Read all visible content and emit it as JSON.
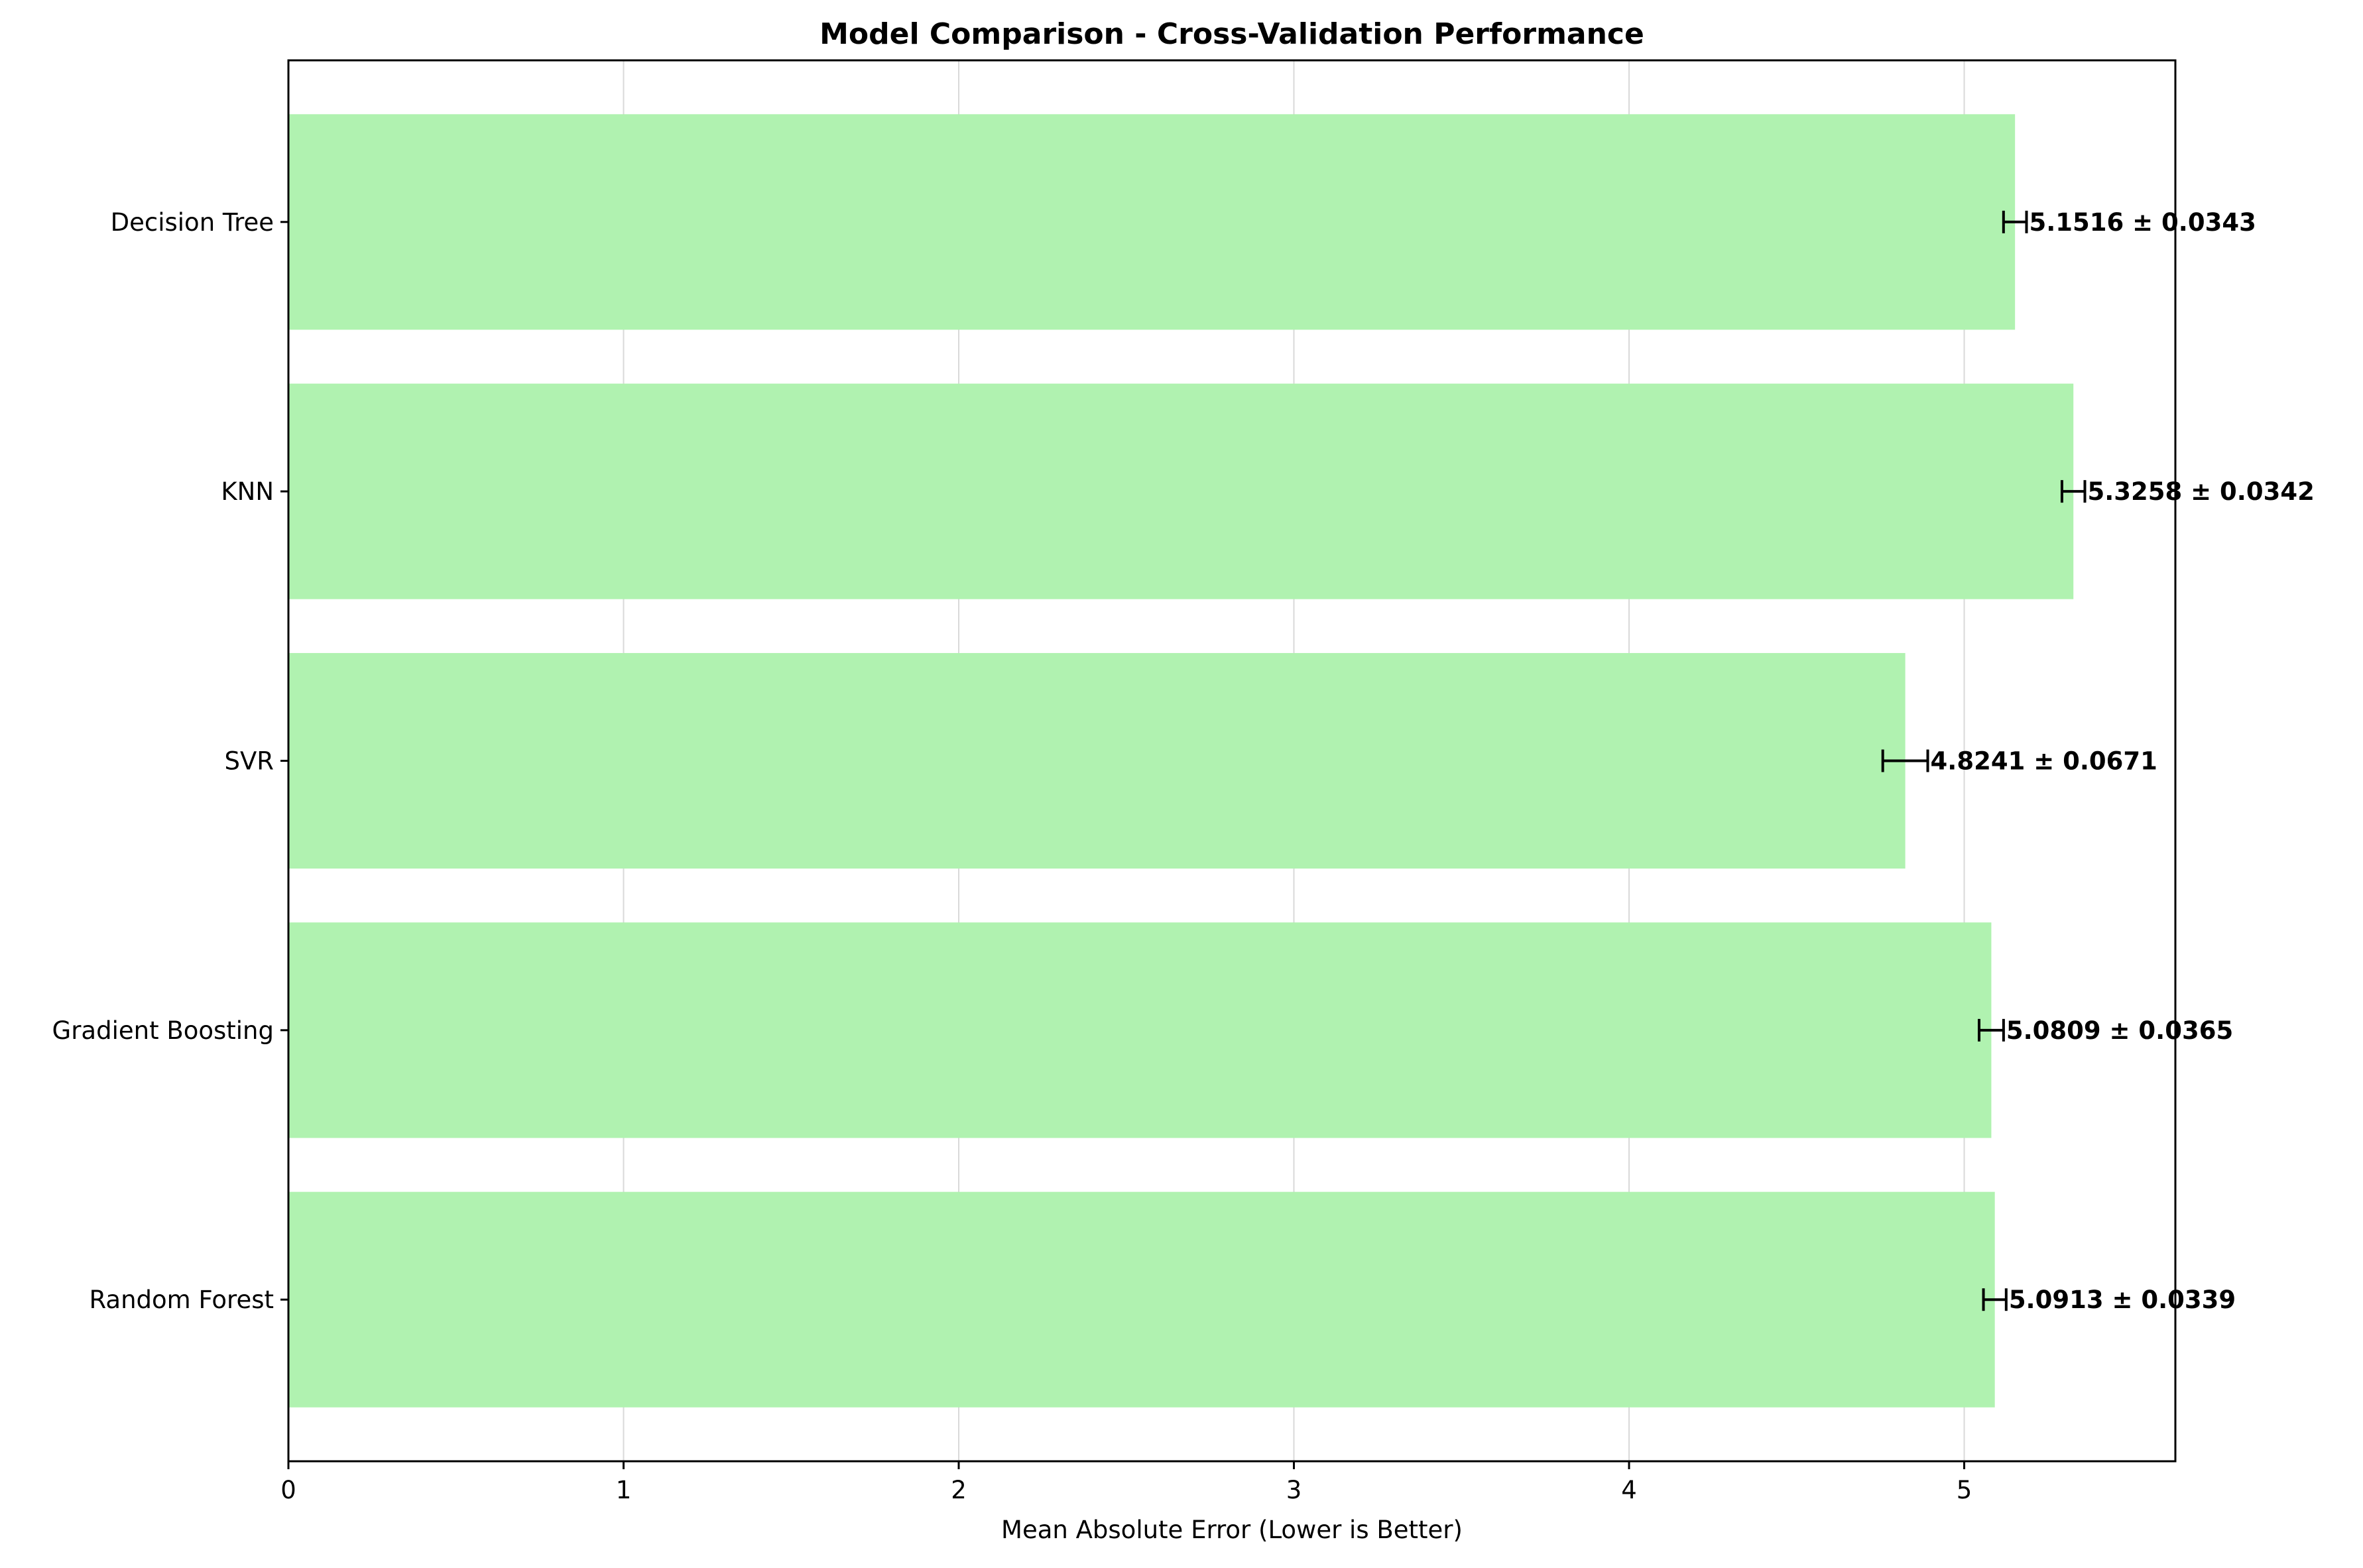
{
  "chart_data": {
    "type": "bar",
    "orientation": "horizontal",
    "title": "Model Comparison - Cross-Validation Performance",
    "xlabel": "Mean Absolute Error (Lower is Better)",
    "ylabel": "",
    "xlim": [
      0,
      5.63
    ],
    "xticks": [
      0,
      1,
      2,
      3,
      4,
      5
    ],
    "grid": "vertical",
    "categories": [
      "Random Forest",
      "Gradient Boosting",
      "SVR",
      "KNN",
      "Decision Tree"
    ],
    "values": [
      5.0913,
      5.0809,
      4.8241,
      5.3258,
      5.1516
    ],
    "errors": [
      0.0339,
      0.0365,
      0.0671,
      0.0342,
      0.0343
    ],
    "labels": [
      "5.0913 ± 0.0339",
      "5.0809 ± 0.0365",
      "4.8241 ± 0.0671",
      "5.3258 ± 0.0342",
      "5.1516 ± 0.0343"
    ],
    "colors": {
      "bar": "#b0f2b0",
      "grid": "#d9d9d9",
      "axis": "#000000"
    }
  }
}
